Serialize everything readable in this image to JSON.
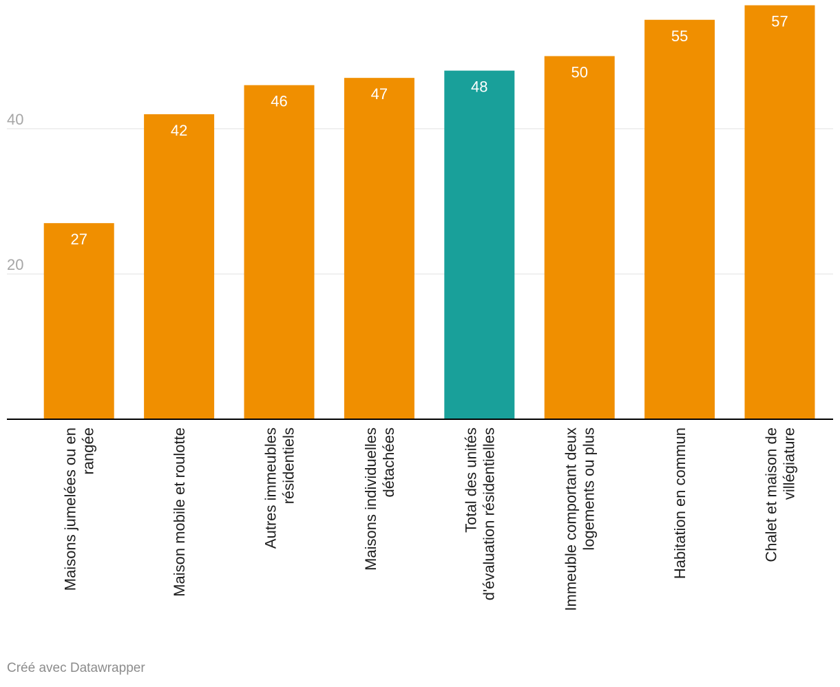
{
  "chart_data": {
    "type": "bar",
    "title": "",
    "xlabel": "",
    "ylabel": "",
    "ylim": [
      0,
      57
    ],
    "yticks": [
      20,
      40
    ],
    "grid": true,
    "categories": [
      [
        "Maisons jumelées ou en",
        "rangée"
      ],
      [
        "Maison mobile et roulotte"
      ],
      [
        "Autres immeubles",
        "résidentiels"
      ],
      [
        "Maisons individuelles",
        "détachées"
      ],
      [
        "Total des unités",
        "d'évaluation résidentielles"
      ],
      [
        "Immeuble comportant deux",
        "logements ou plus"
      ],
      [
        "Habitation en commun"
      ],
      [
        "Chalet et maison de",
        "villégiature"
      ]
    ],
    "values": [
      27,
      42,
      46,
      47,
      48,
      50,
      55,
      57
    ],
    "highlight_index": 4,
    "colors": {
      "bar": "#f08f00",
      "highlight": "#19a09a",
      "grid": "#e0e0e0",
      "tick_label": "#a6a6a6",
      "baseline": "#000000",
      "category_label": "#1e1e1e",
      "value_label": "#ffffff"
    }
  },
  "footer": {
    "credit": "Créé avec Datawrapper"
  }
}
